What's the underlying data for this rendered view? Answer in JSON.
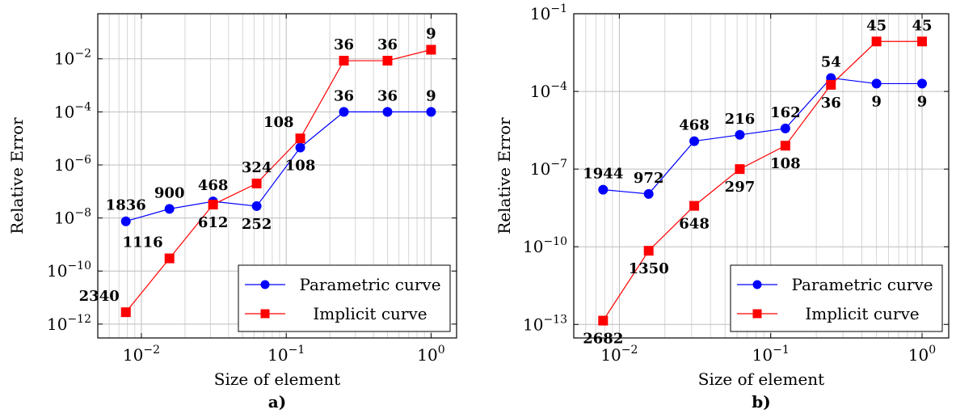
{
  "chart_data": [
    {
      "type": "line",
      "panel_label": "a)",
      "xlabel": "Size of element",
      "ylabel": "Relative Error",
      "x_scale": "log",
      "y_scale": "log",
      "xlim": [
        0.005,
        1.5
      ],
      "ylim": [
        3e-13,
        0.5
      ],
      "x_ticks": [
        {
          "value": 0.01,
          "base": "10",
          "exp": "−2"
        },
        {
          "value": 0.1,
          "base": "10",
          "exp": "−1"
        },
        {
          "value": 1,
          "base": "10",
          "exp": "0"
        }
      ],
      "y_ticks": [
        {
          "value": 1e-12,
          "base": "10",
          "exp": "−12"
        },
        {
          "value": 1e-10,
          "base": "10",
          "exp": "−10"
        },
        {
          "value": 1e-08,
          "base": "10",
          "exp": "−8"
        },
        {
          "value": 1e-06,
          "base": "10",
          "exp": "−6"
        },
        {
          "value": 0.0001,
          "base": "10",
          "exp": "−4"
        },
        {
          "value": 0.01,
          "base": "10",
          "exp": "−2"
        }
      ],
      "grid": true,
      "legend_position": "bottom-right",
      "series": [
        {
          "name": "Parametric curve",
          "color": "#0000ff",
          "marker": "circle",
          "x": [
            0.0078125,
            0.015625,
            0.03125,
            0.0625,
            0.125,
            0.25,
            0.5,
            1
          ],
          "y": [
            7.5e-09,
            2.2e-08,
            4.2e-08,
            2.8e-08,
            4.5e-06,
            0.0001,
            0.0001,
            0.0001
          ],
          "labels": [
            "1836",
            "900",
            "468",
            "252",
            "108",
            "36",
            "36",
            "9"
          ],
          "label_pos": [
            "above",
            "above",
            "above",
            "below",
            "below",
            "above",
            "above",
            "above"
          ]
        },
        {
          "name": "Implicit curve",
          "color": "#ff0000",
          "marker": "square",
          "x": [
            0.0078125,
            0.015625,
            0.03125,
            0.0625,
            0.125,
            0.25,
            0.5,
            1
          ],
          "y": [
            2.8e-12,
            3e-10,
            3.2e-08,
            2e-07,
            1e-05,
            0.0085,
            0.0085,
            0.022
          ],
          "labels": [
            "2340",
            "1116",
            "612",
            "324",
            "108",
            "36",
            "36",
            "9"
          ],
          "label_pos": [
            "above-left",
            "above-left",
            "below",
            "above",
            "above-left",
            "above",
            "above",
            "above"
          ]
        }
      ]
    },
    {
      "type": "line",
      "panel_label": "b)",
      "xlabel": "Size of element",
      "ylabel": "Relative Error",
      "x_scale": "log",
      "y_scale": "log",
      "xlim": [
        0.005,
        1.5
      ],
      "ylim": [
        3e-14,
        0.1
      ],
      "x_ticks": [
        {
          "value": 0.01,
          "base": "10",
          "exp": "−2"
        },
        {
          "value": 0.1,
          "base": "10",
          "exp": "−1"
        },
        {
          "value": 1,
          "base": "10",
          "exp": "0"
        }
      ],
      "y_ticks": [
        {
          "value": 1e-13,
          "base": "10",
          "exp": "−13"
        },
        {
          "value": 1e-10,
          "base": "10",
          "exp": "−10"
        },
        {
          "value": 1e-07,
          "base": "10",
          "exp": "−7"
        },
        {
          "value": 0.0001,
          "base": "10",
          "exp": "−4"
        },
        {
          "value": 0.1,
          "base": "10",
          "exp": "−1"
        }
      ],
      "grid": true,
      "legend_position": "bottom-right",
      "series": [
        {
          "name": "Parametric curve",
          "color": "#0000ff",
          "marker": "circle",
          "x": [
            0.0078125,
            0.015625,
            0.03125,
            0.0625,
            0.125,
            0.25,
            0.5,
            1
          ],
          "y": [
            1.6e-08,
            1.1e-08,
            1.2e-06,
            2.1e-06,
            3.7e-06,
            0.00033,
            0.0002,
            0.0002
          ],
          "labels": [
            "1944",
            "972",
            "468",
            "216",
            "162",
            "54",
            "9",
            "9"
          ],
          "label_pos": [
            "above",
            "above",
            "above",
            "above",
            "above",
            "above",
            "below",
            "below"
          ]
        },
        {
          "name": "Implicit curve",
          "color": "#ff0000",
          "marker": "square",
          "x": [
            0.0078125,
            0.015625,
            0.03125,
            0.0625,
            0.125,
            0.25,
            0.5,
            1
          ],
          "y": [
            1.4e-13,
            7e-11,
            3.8e-09,
            1e-07,
            8e-07,
            0.00018,
            0.0085,
            0.0085
          ],
          "labels": [
            "2682",
            "1350",
            "648",
            "297",
            "108",
            "36",
            "45",
            "45"
          ],
          "label_pos": [
            "below",
            "below",
            "below",
            "below",
            "below",
            "below",
            "above",
            "above"
          ]
        }
      ]
    }
  ]
}
